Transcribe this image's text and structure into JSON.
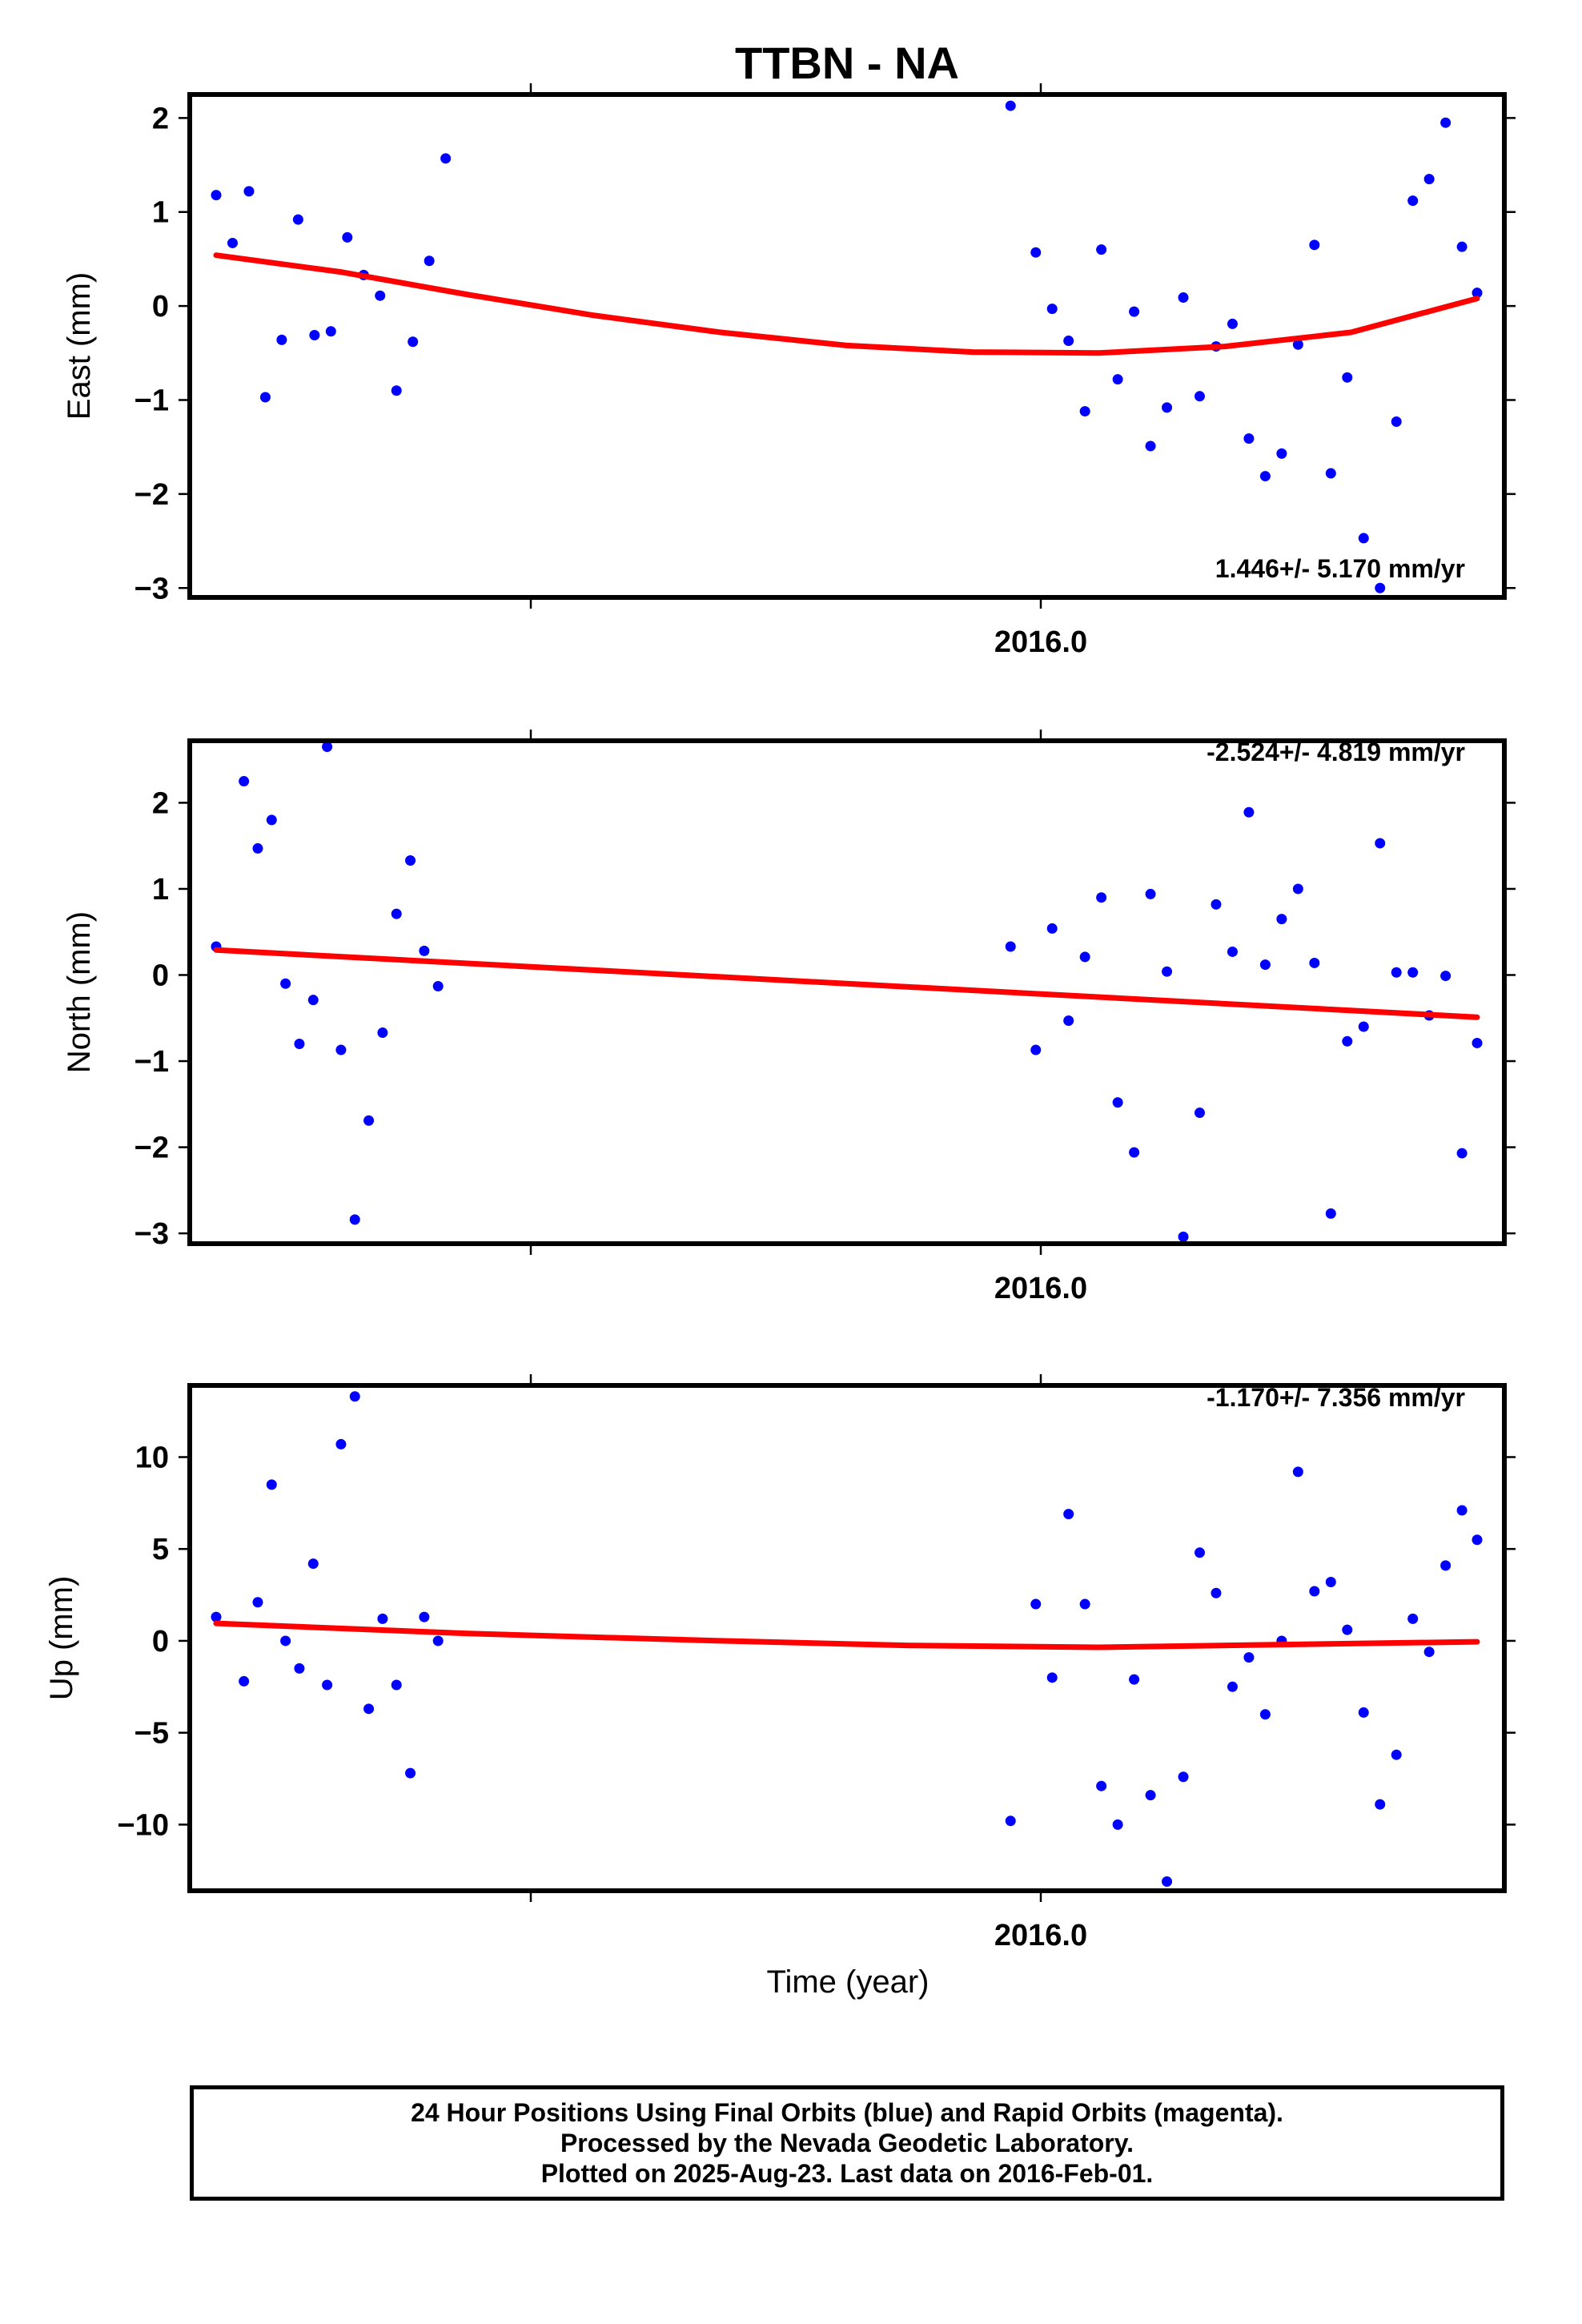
{
  "chart_data": [
    {
      "type": "scatter",
      "title": "TTBN - NA",
      "ylabel": "East (mm)",
      "xtick_label": "2016.0",
      "rate_label": "1.446+/- 5.170 mm/yr",
      "ylim": [
        -3.1,
        2.25
      ],
      "yticks": [
        -3,
        -2,
        -1,
        0,
        1,
        2
      ],
      "ytick_labels": [
        "−3",
        "−2",
        "−1",
        "0",
        "1",
        "2"
      ],
      "point_color": "#0000ff",
      "fit_color": "#ff0000",
      "x": [
        0.0,
        0.013,
        0.026,
        0.039,
        0.052,
        0.065,
        0.078,
        0.091,
        0.104,
        0.117,
        0.13,
        0.143,
        0.156,
        0.169,
        0.182,
        0.63,
        0.65,
        0.663,
        0.676,
        0.689,
        0.702,
        0.715,
        0.728,
        0.741,
        0.754,
        0.767,
        0.78,
        0.793,
        0.806,
        0.819,
        0.832,
        0.845,
        0.858,
        0.871,
        0.884,
        0.897,
        0.91,
        0.923,
        0.936,
        0.949,
        0.962,
        0.975,
        0.988,
        1.0
      ],
      "values": [
        1.18,
        0.67,
        1.22,
        -0.97,
        -0.36,
        0.92,
        -0.31,
        -0.27,
        0.73,
        0.33,
        0.11,
        -0.9,
        -0.38,
        0.48,
        1.57,
        2.13,
        0.57,
        -0.03,
        -0.37,
        -1.12,
        0.6,
        -0.78,
        -0.06,
        -1.49,
        -1.08,
        0.09,
        -0.96,
        -0.43,
        -0.19,
        -1.41,
        -1.81,
        -1.57,
        -0.41,
        0.65,
        -1.78,
        -0.76,
        -2.47,
        -3.0,
        -1.23,
        1.12,
        1.35,
        1.95,
        0.63,
        0.14
      ],
      "fit": [
        [
          0.0,
          0.54
        ],
        [
          0.1,
          0.36
        ],
        [
          0.2,
          0.12
        ],
        [
          0.3,
          -0.1
        ],
        [
          0.4,
          -0.28
        ],
        [
          0.5,
          -0.42
        ],
        [
          0.6,
          -0.49
        ],
        [
          0.7,
          -0.5
        ],
        [
          0.8,
          -0.43
        ],
        [
          0.9,
          -0.28
        ],
        [
          1.0,
          0.08
        ]
      ]
    },
    {
      "type": "scatter",
      "ylabel": "North (mm)",
      "xtick_label": "2016.0",
      "rate_label": "-2.524+/- 4.819 mm/yr",
      "ylim": [
        -3.12,
        2.72
      ],
      "yticks": [
        -3,
        -2,
        -1,
        0,
        1,
        2
      ],
      "ytick_labels": [
        "−3",
        "−2",
        "−1",
        "0",
        "1",
        "2"
      ],
      "point_color": "#0000ff",
      "fit_color": "#ff0000",
      "x": [
        0.0,
        0.022,
        0.033,
        0.044,
        0.055,
        0.066,
        0.077,
        0.088,
        0.099,
        0.11,
        0.121,
        0.132,
        0.143,
        0.154,
        0.165,
        0.176,
        0.63,
        0.65,
        0.663,
        0.676,
        0.689,
        0.702,
        0.715,
        0.728,
        0.741,
        0.754,
        0.767,
        0.78,
        0.793,
        0.806,
        0.819,
        0.832,
        0.845,
        0.858,
        0.871,
        0.884,
        0.897,
        0.91,
        0.923,
        0.936,
        0.949,
        0.962,
        0.975,
        0.988,
        1.0
      ],
      "values": [
        0.33,
        2.25,
        1.47,
        1.8,
        -0.1,
        -0.8,
        -0.29,
        2.65,
        -0.87,
        -2.84,
        -1.69,
        -0.67,
        0.71,
        1.33,
        0.28,
        -0.13,
        0.33,
        -0.87,
        0.54,
        -0.53,
        0.21,
        0.9,
        -1.48,
        -2.06,
        0.94,
        0.04,
        -3.04,
        -1.6,
        0.82,
        0.27,
        1.89,
        0.12,
        0.65,
        1.0,
        0.14,
        -2.77,
        -0.77,
        -0.6,
        1.53,
        0.03,
        0.03,
        -0.47,
        -0.01,
        -2.07,
        -0.79
      ],
      "fit": [
        [
          0.0,
          0.29
        ],
        [
          1.0,
          -0.49
        ]
      ]
    },
    {
      "type": "scatter",
      "ylabel": "Up (mm)",
      "xlabel": "Time (year)",
      "xtick_label": "2016.0",
      "rate_label": "-1.170+/- 7.356 mm/yr",
      "ylim": [
        -13.6,
        13.9
      ],
      "yticks": [
        -10,
        -5,
        0,
        5,
        10
      ],
      "ytick_labels": [
        "−10",
        "−5",
        "0",
        "5",
        "10"
      ],
      "point_color": "#0000ff",
      "fit_color": "#ff0000",
      "x": [
        0.0,
        0.022,
        0.033,
        0.044,
        0.055,
        0.066,
        0.077,
        0.088,
        0.099,
        0.11,
        0.121,
        0.132,
        0.143,
        0.154,
        0.165,
        0.176,
        0.63,
        0.65,
        0.663,
        0.676,
        0.689,
        0.702,
        0.715,
        0.728,
        0.741,
        0.754,
        0.767,
        0.78,
        0.793,
        0.806,
        0.819,
        0.832,
        0.845,
        0.858,
        0.871,
        0.884,
        0.897,
        0.91,
        0.923,
        0.936,
        0.949,
        0.962,
        0.975,
        0.988,
        1.0
      ],
      "values": [
        1.3,
        -2.2,
        2.1,
        8.5,
        0.0,
        -1.5,
        4.2,
        -2.4,
        10.7,
        13.3,
        -3.7,
        1.2,
        -2.4,
        -7.2,
        1.3,
        0.0,
        -9.8,
        2.0,
        -2.0,
        6.9,
        2.0,
        -7.9,
        -10.0,
        -2.1,
        -8.4,
        -13.1,
        -7.4,
        4.8,
        2.6,
        -2.5,
        -0.9,
        -4.0,
        0.0,
        9.2,
        2.7,
        3.2,
        0.6,
        -3.9,
        -8.9,
        -6.2,
        1.2,
        -0.6,
        4.1,
        7.1,
        5.5
      ],
      "fit": [
        [
          0.0,
          0.95
        ],
        [
          0.2,
          0.4
        ],
        [
          0.4,
          0.0
        ],
        [
          0.55,
          -0.25
        ],
        [
          0.7,
          -0.35
        ],
        [
          0.85,
          -0.2
        ],
        [
          1.0,
          -0.05
        ]
      ]
    }
  ],
  "footer": {
    "line1": "24 Hour Positions Using Final Orbits (blue) and Rapid Orbits (magenta).",
    "line2": "Processed by the Nevada Geodetic Laboratory.",
    "line3": "Plotted on 2025-Aug-23. Last data on 2016-Feb-01."
  }
}
